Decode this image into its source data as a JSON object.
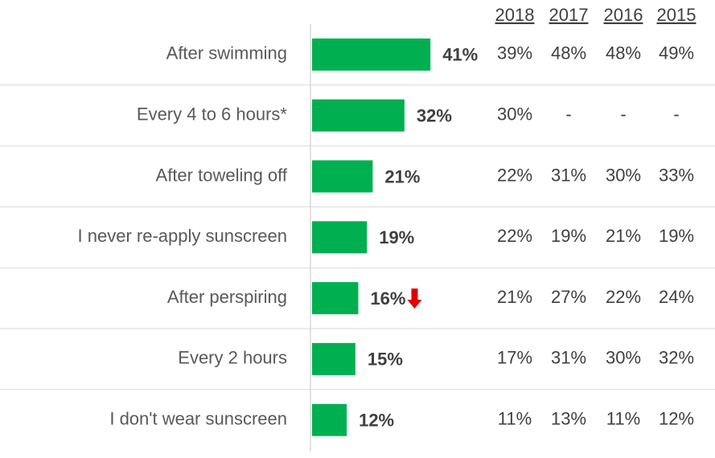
{
  "chart_data": {
    "type": "bar",
    "orientation": "horizontal",
    "categories": [
      "After swimming",
      "Every 4 to 6 hours*",
      "After toweling off",
      "I never re-apply sunscreen",
      "After perspiring",
      "Every 2 hours",
      "I don't wear sunscreen"
    ],
    "values": [
      41,
      32,
      21,
      19,
      16,
      15,
      12
    ],
    "value_labels": [
      "41%",
      "32%",
      "21%",
      "19%",
      "16%",
      "15%",
      "12%"
    ],
    "color": "#00b050",
    "table": {
      "columns": [
        "2018",
        "2017",
        "2016",
        "2015"
      ],
      "rows": [
        [
          "39%",
          "48%",
          "48%",
          "49%"
        ],
        [
          "30%",
          "-",
          "-",
          "-"
        ],
        [
          "22%",
          "31%",
          "30%",
          "33%"
        ],
        [
          "22%",
          "19%",
          "21%",
          "19%"
        ],
        [
          "21%",
          "27%",
          "22%",
          "24%"
        ],
        [
          "17%",
          "31%",
          "30%",
          "32%"
        ],
        [
          "11%",
          "13%",
          "11%",
          "12%"
        ]
      ]
    }
  }
}
